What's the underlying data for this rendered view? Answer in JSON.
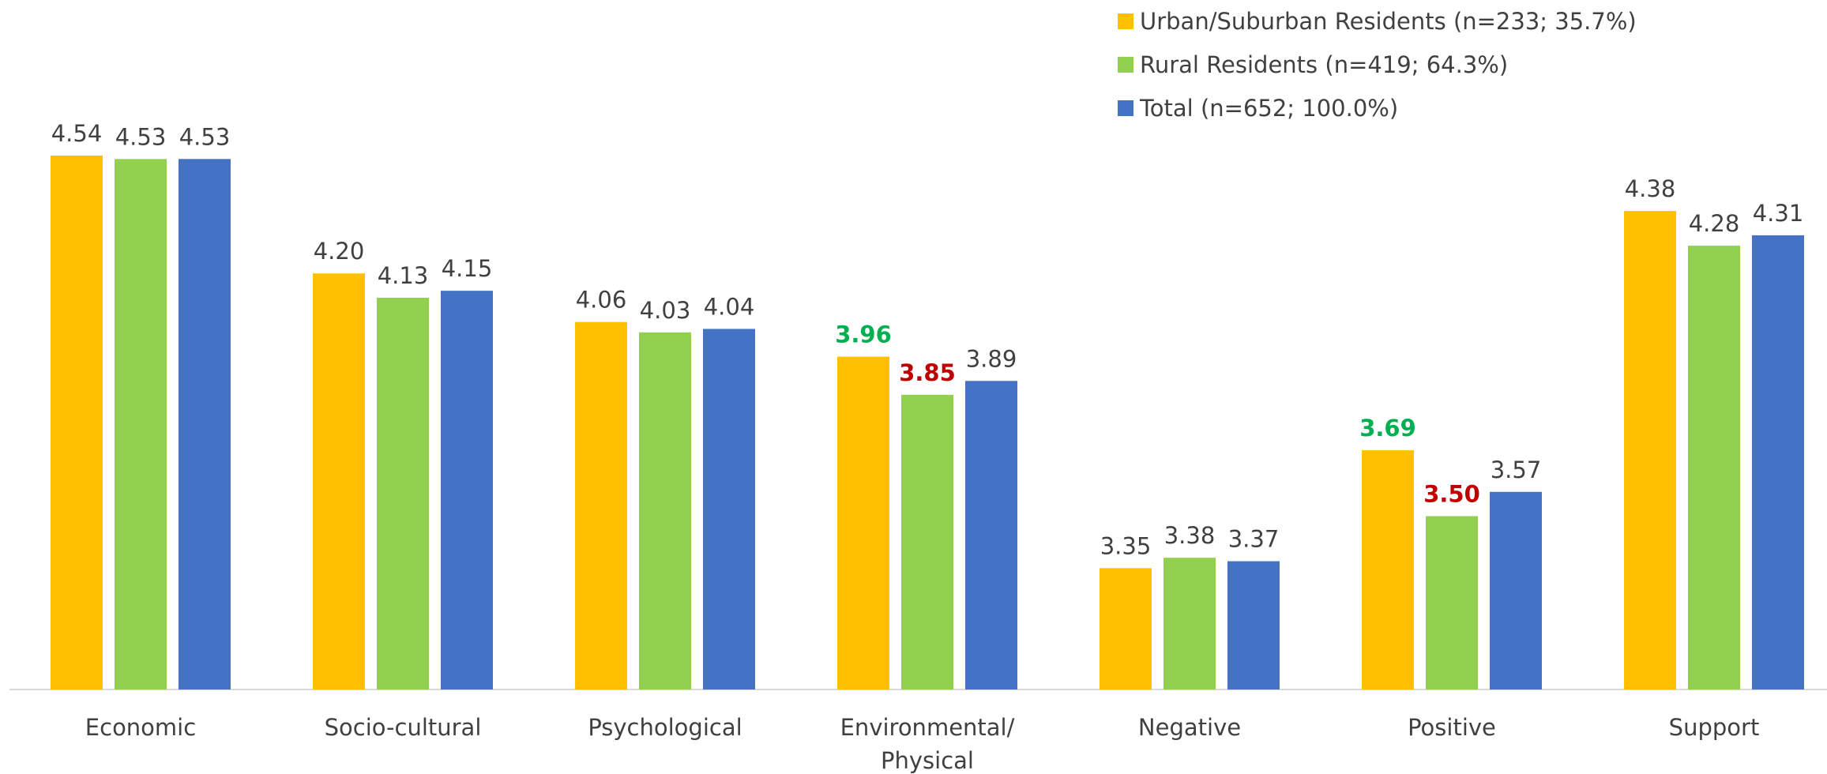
{
  "chart_data": {
    "type": "bar",
    "categories": [
      "Economic",
      "Socio-cultural",
      "Psychological",
      "Environmental/ Physical",
      "Negative",
      "Positive",
      "Support"
    ],
    "series": [
      {
        "name": "Urban/Suburban Residents (n=233; 35.7%)",
        "color": "#ffc000",
        "values": [
          4.54,
          4.2,
          4.06,
          3.96,
          3.35,
          3.69,
          4.38
        ],
        "value_labels": [
          "4.54",
          "4.20",
          "4.06",
          "3.96",
          "3.35",
          "3.69",
          "4.38"
        ],
        "label_colors": [
          null,
          null,
          null,
          "#00b050",
          null,
          "#00b050",
          null
        ]
      },
      {
        "name": "Rural Residents (n=419; 64.3%)",
        "color": "#92d050",
        "values": [
          4.53,
          4.13,
          4.03,
          3.85,
          3.38,
          3.5,
          4.28
        ],
        "value_labels": [
          "4.53",
          "4.13",
          "4.03",
          "3.85",
          "3.38",
          "3.50",
          "4.28"
        ],
        "label_colors": [
          null,
          null,
          null,
          "#c00000",
          null,
          "#c00000",
          null
        ]
      },
      {
        "name": "Total (n=652; 100.0%)",
        "color": "#4472c4",
        "values": [
          4.53,
          4.15,
          4.04,
          3.89,
          3.37,
          3.57,
          4.31
        ],
        "value_labels": [
          "4.53",
          "4.15",
          "4.04",
          "3.89",
          "3.37",
          "3.57",
          "4.31"
        ],
        "label_colors": [
          null,
          null,
          null,
          null,
          null,
          null,
          null
        ]
      }
    ],
    "ylim": [
      3,
      5
    ],
    "legend": "top-right"
  }
}
